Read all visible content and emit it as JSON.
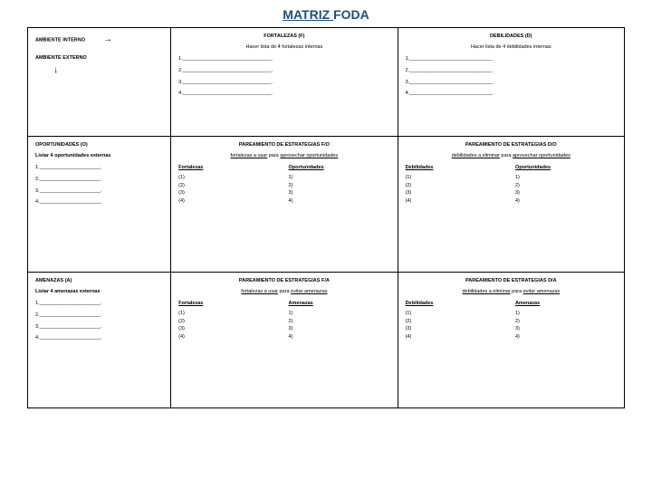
{
  "title_left": "MATRIZ ",
  "title_right": "FODA",
  "colors": {
    "title": "#1f4e79",
    "border": "#000000",
    "bg": "#ffffff"
  },
  "cell_11": {
    "line1": "AMBIENTE INTERNO",
    "line2": "AMBIENTE EXTERNO"
  },
  "cell_12": {
    "head": "FORTALEZAS (F)",
    "sub": "Hacer lista de 4 fortalezas internas",
    "blanks": [
      "1.________________________________.",
      "2.________________________________.",
      "3.________________________________.",
      "4.________________________________."
    ]
  },
  "cell_13": {
    "head": "DEBILIDADES (D)",
    "sub": "Hacer lista de 4 debilidades internas",
    "blanks": [
      "1.______________________________",
      "2.______________________________",
      "3.______________________________",
      "4.______________________________"
    ]
  },
  "cell_21": {
    "head": "OPORTUNIDADES (O)",
    "sub": "Listar 4 oportunidades externas",
    "blanks": [
      "1.______________________.",
      "2.______________________.",
      "3.______________________.",
      "4.______________________."
    ]
  },
  "cell_22": {
    "head": "PAREAMIENTO DE ESTRATEGIAS F/O",
    "sub_pre": "fortalezas a usar",
    "sub_mid": " para ",
    "sub_post": "aprovechar oportunidades",
    "left_head": "Fortalezas",
    "right_head": "Oportunidades",
    "left": [
      "(1)",
      "(2)",
      "(3)",
      "(4)"
    ],
    "right": [
      "1)",
      "2)",
      "3)",
      "4)"
    ]
  },
  "cell_23": {
    "head": "PAREAMIENTO DE ESTRATEGIAS D/O",
    "sub_pre": "debilidades a eliminar",
    "sub_mid": " para ",
    "sub_post": "aprovechar oportunidades",
    "left_head": "Debilidades",
    "right_head": "Oportunidades",
    "left": [
      "(1)",
      "(2)",
      "(3)",
      "(4)"
    ],
    "right": [
      "1)",
      "2)",
      "3)",
      "4)"
    ]
  },
  "cell_31": {
    "head": "AMENAZAS (A)",
    "sub": "Listar 4 amenazas externas",
    "blanks": [
      "1.______________________.",
      "2.______________________.",
      "3.______________________.",
      "4.______________________."
    ]
  },
  "cell_32": {
    "head": "PAREAMIENTO DE ESTRATEGIAS F/A",
    "sub_pre": "fortalezas a usar",
    "sub_mid": " para ",
    "sub_post": "evitar amenazas",
    "left_head": "Fortalezas",
    "right_head": "Amenazas",
    "left": [
      "(1)",
      "(2)",
      "(3)",
      "(4)"
    ],
    "right": [
      "1)",
      "2)",
      "3)",
      "4)"
    ]
  },
  "cell_33": {
    "head": "PAREAMIENTO DE ESTRATEGIAS D/A",
    "sub_pre": "debilidades a eliminar",
    "sub_mid": " para ",
    "sub_post": "evitar amenazas",
    "left_head": "Debilidades",
    "right_head": "Amenazas",
    "left": [
      "(1)",
      "(2)",
      "(3)",
      "(4)"
    ],
    "right": [
      "1)",
      "2)",
      "3)",
      "4)"
    ]
  }
}
